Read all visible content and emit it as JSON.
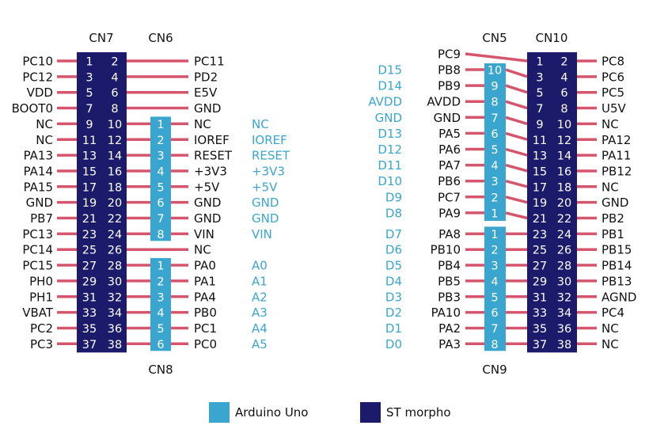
{
  "colors": {
    "st_morpho": "#1b1a6b",
    "arduino": "#3aa6d0",
    "pin_line": "#d5566c",
    "arduino_text": "#3aa6d0",
    "text": "#111111"
  },
  "connectors": {
    "cn7": "CN7",
    "cn6": "CN6",
    "cn8": "CN8",
    "cn5": "CN5",
    "cn10": "CN10",
    "cn9": "CN9"
  },
  "left": {
    "cn7_left": [
      "PC10",
      "PC12",
      "VDD",
      "BOOT0",
      "NC",
      "NC",
      "PA13",
      "PA14",
      "PA15",
      "GND",
      "PB7",
      "PC13",
      "PC14",
      "PC15",
      "PH0",
      "PH1",
      "VBAT",
      "PC2",
      "PC3"
    ],
    "cn7_right": [
      "PC11",
      "PD2",
      "E5V",
      "GND",
      "NC",
      "IOREF",
      "RESET",
      "+3V3",
      "+5V",
      "GND",
      "GND",
      "VIN",
      "NC",
      "PA0",
      "PA1",
      "PA4",
      "PB0",
      "PC1",
      "PC0"
    ],
    "cn6_arduino": [
      "NC",
      "IOREF",
      "RESET",
      "+3V3",
      "+5V",
      "GND",
      "GND",
      "VIN"
    ],
    "cn8_arduino": [
      "A0",
      "A1",
      "A2",
      "A3",
      "A4",
      "A5"
    ]
  },
  "right": {
    "cn10_left": [
      "PC9",
      "PB8",
      "PB9",
      "AVDD",
      "GND",
      "PA5",
      "PA6",
      "PA7",
      "PB6",
      "PC7",
      "PA9",
      "PA8",
      "PB10",
      "PB4",
      "PB5",
      "PB3",
      "PA10",
      "PA2",
      "PA3"
    ],
    "cn10_right": [
      "PC8",
      "PC6",
      "PC5",
      "U5V",
      "NC",
      "PA12",
      "PA11",
      "PB12",
      "NC",
      "GND",
      "PB2",
      "PB1",
      "PB15",
      "PB14",
      "PB13",
      "AGND",
      "PC4",
      "NC",
      "NC"
    ],
    "cn5_arduino": [
      "D15",
      "D14",
      "AVDD",
      "GND",
      "D13",
      "D12",
      "D11",
      "D10",
      "D9",
      "D8"
    ],
    "cn9_arduino": [
      "D7",
      "D6",
      "D5",
      "D4",
      "D3",
      "D2",
      "D1",
      "D0"
    ]
  },
  "legend": {
    "arduino": "Arduino Uno",
    "morpho": "ST morpho"
  }
}
